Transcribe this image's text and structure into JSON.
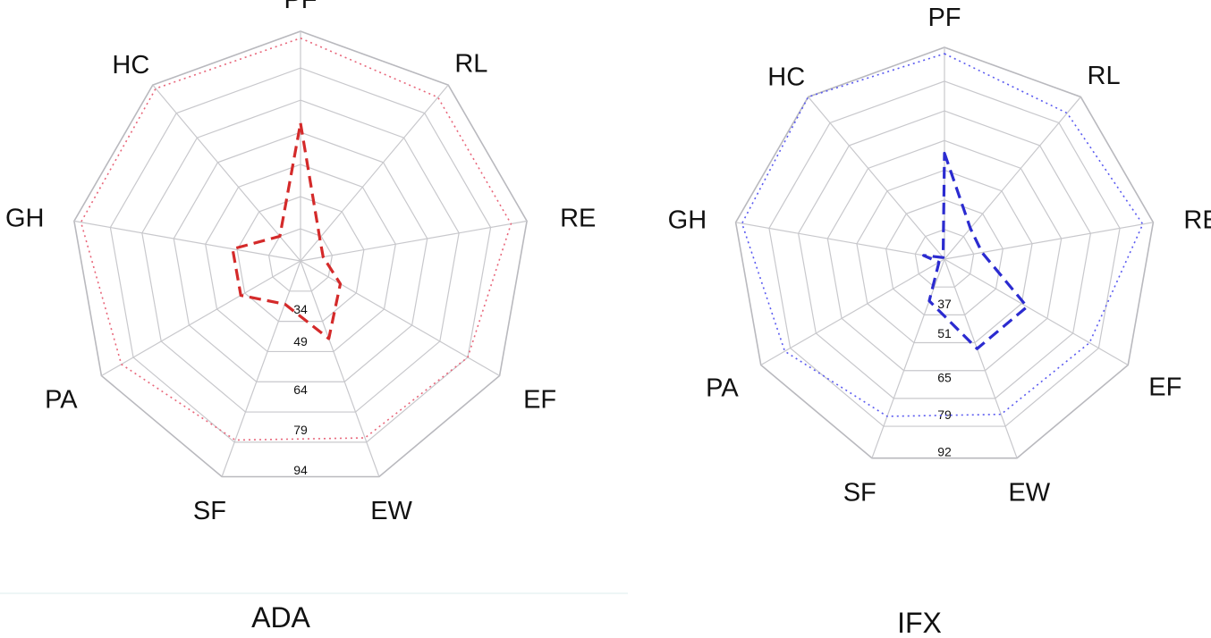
{
  "chart_data": [
    {
      "type": "radar",
      "caption": "ADA",
      "axes": [
        "PF",
        "RL",
        "RE",
        "EF",
        "EW",
        "SF",
        "PA",
        "GH",
        "HC"
      ],
      "ring_labels": [
        "34",
        "49",
        "64",
        "79",
        "94"
      ],
      "colors": {
        "series": "#d42a2a",
        "reference": "#e8667a"
      },
      "series": [
        {
          "style": "dashed",
          "values": [
            60,
            13,
            10,
            20,
            36,
            20,
            30,
            30,
            14
          ]
        },
        {
          "style": "dotted",
          "values": [
            97,
            93,
            93,
            84,
            82,
            83,
            90,
            97,
            98
          ]
        }
      ]
    },
    {
      "type": "radar",
      "caption": "IFX",
      "axes": [
        "PF",
        "RL",
        "RE",
        "EF",
        "EW",
        "SF",
        "PA",
        "GH",
        "HC"
      ],
      "ring_labels": [
        "37",
        "51",
        "65",
        "79",
        "92"
      ],
      "colors": {
        "series": "#2b2bd0",
        "reference": "#5a5af0"
      },
      "series": [
        {
          "style": "dashed",
          "values": [
            50,
            19,
            18,
            45,
            45,
            21,
            3,
            10,
            1
          ]
        },
        {
          "style": "dotted",
          "values": [
            97,
            90,
            95,
            79,
            78,
            79,
            87,
            97,
            100
          ]
        }
      ]
    }
  ]
}
